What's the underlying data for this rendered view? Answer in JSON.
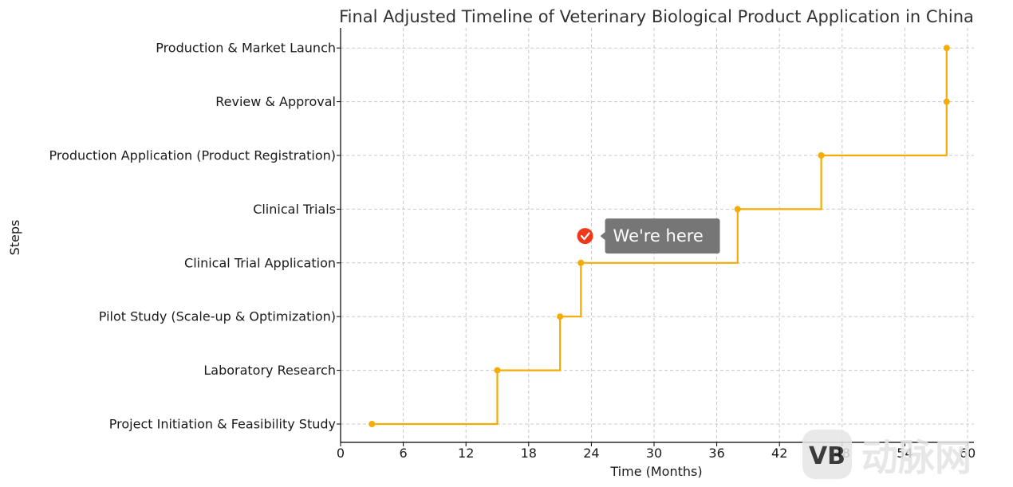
{
  "chart_data": {
    "type": "line",
    "title": "Final Adjusted Timeline of Veterinary Biological Product Application in China",
    "xlabel": "Time (Months)",
    "ylabel": "Steps",
    "xlim": [
      0,
      61
    ],
    "xticks": [
      0,
      6,
      12,
      18,
      24,
      30,
      36,
      42,
      48,
      54,
      60
    ],
    "categories": [
      "Project Initiation & Feasibility Study",
      "Laboratory Research",
      "Pilot Study (Scale-up & Optimization)",
      "Clinical Trial Application",
      "Clinical Trials",
      "Production Application (Product Registration)",
      "Review & Approval",
      "Production & Market Launch"
    ],
    "series": [
      {
        "x": [
          3,
          15,
          21,
          23,
          38,
          46,
          58,
          58
        ],
        "color": "#f5ab00",
        "drawstyle": "steps-post"
      }
    ],
    "grid": true,
    "annotation": {
      "text": "We're here",
      "month": 23.4,
      "level": 3.5,
      "marker_color": "#f0391a",
      "box_color": "#767676"
    }
  },
  "watermark": {
    "text": "动脉网",
    "logo_letter": "VB"
  }
}
